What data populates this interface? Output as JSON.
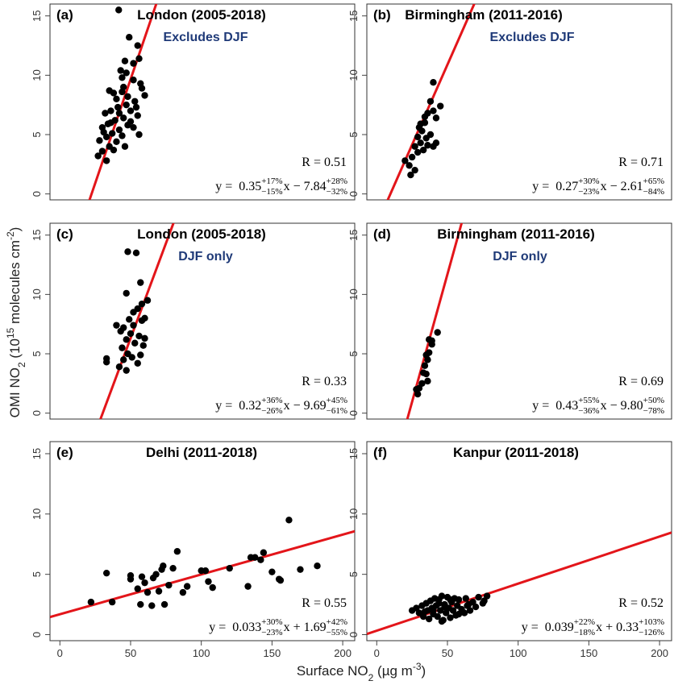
{
  "ylabel": [
    {
      "text": "OMI NO"
    },
    {
      "text": "2",
      "script": "sub"
    },
    {
      "text": " (10"
    },
    {
      "text": "15",
      "script": "sup"
    },
    {
      "text": " molecules cm"
    },
    {
      "text": "-2",
      "script": "sup"
    },
    {
      "text": ")"
    }
  ],
  "xlabel": [
    {
      "text": "Surface NO"
    },
    {
      "text": "2",
      "script": "sub"
    },
    {
      "text": " (µg m"
    },
    {
      "text": "-3",
      "script": "sup"
    },
    {
      "text": ")"
    }
  ],
  "chart_data": [
    {
      "type": "scatter",
      "panel": "(a)",
      "title": "London (2005-2018)",
      "annotation": "Excludes DJF",
      "x": [
        41.6,
        49,
        55,
        56,
        46,
        43,
        44,
        52,
        58,
        60,
        44,
        38,
        35,
        40,
        48,
        53,
        47,
        41,
        36,
        32,
        50,
        55,
        45,
        39,
        34,
        30,
        48,
        52,
        42,
        37,
        33,
        28,
        44,
        56,
        40,
        35,
        30,
        27,
        33,
        38,
        46,
        50,
        54,
        57,
        45,
        42,
        36,
        31,
        47,
        52
      ],
      "values": [
        15.5,
        13.2,
        12.5,
        11.4,
        11.2,
        10.4,
        9.8,
        9.6,
        8.9,
        8.3,
        8.6,
        8.5,
        8.7,
        8.0,
        8.2,
        7.8,
        7.5,
        7.3,
        7.0,
        6.8,
        7.0,
        6.6,
        6.4,
        6.2,
        5.9,
        5.6,
        5.8,
        5.6,
        5.4,
        5.1,
        4.8,
        4.5,
        4.9,
        5.0,
        4.4,
        4.0,
        3.6,
        3.2,
        2.8,
        3.7,
        4.0,
        6.1,
        7.3,
        9.3,
        9.0,
        6.8,
        6.0,
        5.2,
        10.2,
        11.0
      ],
      "color": "#000000",
      "fit_color": "#e3151a",
      "xlim": [
        -7,
        208.5
      ],
      "ylim": [
        -0.5,
        16
      ],
      "yticks": [
        0,
        5,
        10,
        15
      ],
      "r_label": "R = 0.51",
      "fit": {
        "prefix": "y =",
        "slope": 0.35,
        "slope_plus": "+17%",
        "slope_minus": "−15%",
        "var": "x",
        "intercept": -7.84,
        "intercept_label": "− 7.84",
        "intercept_plus": "+28%",
        "intercept_minus": "−32%"
      }
    },
    {
      "type": "scatter",
      "panel": "(b)",
      "title": "Birmingham (2011-2016)",
      "annotation": "Excludes DJF",
      "x": [
        40,
        45,
        38,
        40,
        36,
        42,
        34,
        30,
        32,
        38,
        35,
        29,
        31,
        36,
        40,
        27,
        33,
        29,
        25,
        20,
        23,
        27,
        24,
        34,
        31,
        42
      ],
      "values": [
        9.4,
        7.4,
        7.8,
        7.0,
        6.8,
        6.4,
        6.0,
        5.6,
        5.3,
        5.0,
        4.7,
        4.8,
        4.3,
        4.1,
        4.0,
        4.0,
        3.7,
        3.5,
        3.1,
        2.8,
        2.4,
        2.0,
        1.6,
        6.5,
        5.9,
        4.3
      ],
      "color": "#000000",
      "fit_color": "#e3151a",
      "xlim": [
        -7,
        208.5
      ],
      "ylim": [
        -0.5,
        16
      ],
      "yticks": [
        0,
        5,
        10,
        15
      ],
      "r_label": "R = 0.71",
      "fit": {
        "prefix": "y =",
        "slope": 0.27,
        "slope_plus": "+30%",
        "slope_minus": "−23%",
        "var": "x",
        "intercept": -2.61,
        "intercept_label": "− 2.61",
        "intercept_plus": "+65%",
        "intercept_minus": "−84%"
      }
    },
    {
      "type": "scatter",
      "panel": "(c)",
      "title": "London (2005-2018)",
      "annotation": "DJF only",
      "x": [
        48,
        54,
        57,
        47,
        62,
        58,
        55,
        52,
        60,
        49,
        40,
        45,
        43,
        50,
        56,
        60,
        47,
        53,
        59,
        44,
        48,
        51,
        57,
        45,
        55,
        42,
        47,
        33,
        33,
        52,
        58
      ],
      "values": [
        13.6,
        13.5,
        11.0,
        10.1,
        9.5,
        9.2,
        8.8,
        8.5,
        8.0,
        7.9,
        7.4,
        7.2,
        6.9,
        6.7,
        6.5,
        6.3,
        6.2,
        5.9,
        5.7,
        5.5,
        5.0,
        4.7,
        4.9,
        4.5,
        4.2,
        3.9,
        3.6,
        4.3,
        4.6,
        7.4,
        7.8
      ],
      "color": "#000000",
      "fit_color": "#e3151a",
      "xlim": [
        -7,
        208.5
      ],
      "ylim": [
        -0.5,
        16
      ],
      "yticks": [
        0,
        5,
        10,
        15
      ],
      "r_label": "R = 0.33",
      "fit": {
        "prefix": "y =",
        "slope": 0.32,
        "slope_plus": "+36%",
        "slope_minus": "−26%",
        "var": "x",
        "intercept": -9.69,
        "intercept_label": "− 9.69",
        "intercept_plus": "+45%",
        "intercept_minus": "−61%"
      }
    },
    {
      "type": "scatter",
      "panel": "(d)",
      "title": "Birmingham (2011-2016)",
      "annotation": "DJF only",
      "x": [
        43,
        37,
        39,
        39,
        37,
        36,
        34,
        33,
        35,
        36,
        32,
        30,
        28,
        29,
        35
      ],
      "values": [
        6.8,
        6.2,
        6.1,
        5.8,
        5.1,
        4.5,
        4.0,
        3.4,
        3.3,
        2.7,
        2.5,
        2.1,
        2.0,
        1.6,
        4.9
      ],
      "color": "#000000",
      "fit_color": "#e3151a",
      "xlim": [
        -7,
        208.5
      ],
      "ylim": [
        -0.5,
        16
      ],
      "yticks": [
        0,
        5,
        10,
        15
      ],
      "r_label": "R = 0.69",
      "fit": {
        "prefix": "y =",
        "slope": 0.43,
        "slope_plus": "+55%",
        "slope_minus": "−36%",
        "var": "x",
        "intercept": -9.8,
        "intercept_label": "− 9.80",
        "intercept_plus": "+50%",
        "intercept_minus": "−78%"
      }
    },
    {
      "type": "scatter",
      "panel": "(e)",
      "title": "Delhi (2011-2018)",
      "x": [
        22,
        33,
        37,
        50,
        50,
        55,
        57,
        58,
        60,
        62,
        65,
        66,
        68,
        70,
        72,
        73,
        74,
        77,
        80,
        83,
        87,
        90,
        100,
        103,
        105,
        108,
        120,
        133,
        135,
        138,
        142,
        144,
        150,
        155,
        156,
        162,
        170,
        182
      ],
      "values": [
        2.7,
        5.1,
        2.7,
        4.9,
        4.6,
        3.8,
        2.5,
        4.8,
        4.3,
        3.5,
        2.4,
        4.7,
        5.0,
        3.6,
        5.4,
        5.7,
        2.5,
        4.1,
        5.5,
        6.9,
        3.5,
        4.0,
        5.3,
        5.3,
        4.4,
        3.9,
        5.5,
        4.0,
        6.4,
        6.4,
        6.2,
        6.8,
        5.2,
        4.6,
        4.5,
        9.5,
        5.4,
        5.7
      ],
      "color": "#000000",
      "fit_color": "#e3151a",
      "xlim": [
        -7,
        208.5
      ],
      "ylim": [
        -0.5,
        16
      ],
      "yticks": [
        0,
        5,
        10,
        15
      ],
      "xticks": [
        0,
        50,
        100,
        150,
        200
      ],
      "r_label": "R = 0.55",
      "fit": {
        "prefix": "y =",
        "slope": 0.033,
        "slope_plus": "+30%",
        "slope_minus": "−23%",
        "var": "x",
        "intercept": 1.69,
        "intercept_label": "+ 1.69",
        "intercept_plus": "+42%",
        "intercept_minus": "−55%"
      }
    },
    {
      "type": "scatter",
      "panel": "(f)",
      "title": "Kanpur (2011-2018)",
      "x": [
        25,
        28,
        30,
        32,
        33,
        35,
        36,
        37,
        38,
        39,
        40,
        41,
        42,
        43,
        44,
        45,
        46,
        47,
        48,
        49,
        50,
        51,
        52,
        53,
        54,
        55,
        56,
        57,
        58,
        60,
        62,
        63,
        65,
        66,
        68,
        70,
        72,
        75,
        78,
        34,
        44,
        48,
        52,
        58,
        64,
        76,
        40,
        46
      ],
      "values": [
        2.0,
        2.2,
        1.8,
        2.4,
        1.5,
        2.6,
        2.0,
        1.3,
        2.8,
        2.2,
        1.7,
        3.0,
        2.4,
        1.5,
        2.9,
        2.0,
        3.2,
        1.2,
        2.5,
        1.8,
        3.1,
        2.2,
        1.4,
        2.7,
        2.0,
        3.0,
        1.6,
        2.4,
        2.9,
        2.1,
        1.8,
        3.0,
        2.5,
        2.0,
        2.7,
        2.3,
        3.1,
        2.6,
        3.2,
        1.9,
        2.6,
        2.3,
        2.9,
        1.7,
        2.4,
        2.8,
        2.0,
        1.1
      ],
      "color": "#000000",
      "fit_color": "#e3151a",
      "xlim": [
        -7,
        208.5
      ],
      "ylim": [
        -0.5,
        16
      ],
      "yticks": [
        0,
        5,
        10,
        15
      ],
      "xticks": [
        0,
        50,
        100,
        150,
        200
      ],
      "r_label": "R = 0.52",
      "fit": {
        "prefix": "y =",
        "slope": 0.039,
        "slope_plus": "+22%",
        "slope_minus": "−18%",
        "var": "x",
        "intercept": 0.33,
        "intercept_label": "+ 0.33",
        "intercept_plus": "+103%",
        "intercept_minus": "−126%"
      }
    }
  ]
}
